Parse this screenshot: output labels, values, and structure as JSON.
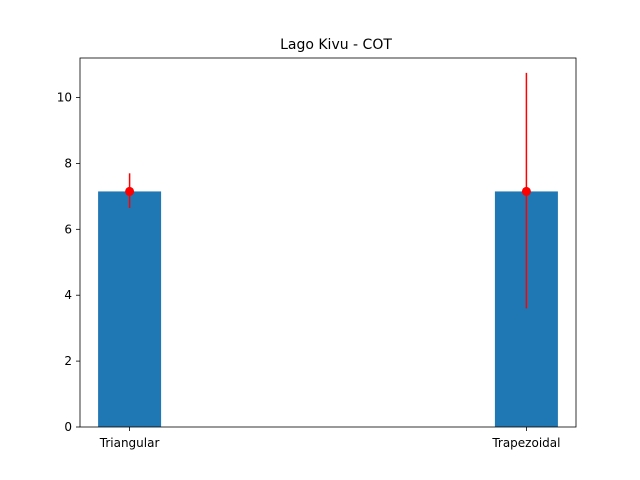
{
  "chart_data": {
    "type": "bar",
    "title": "Lago Kivu - COT",
    "xlabel": "",
    "ylabel": "",
    "categories": [
      "Triangular",
      "Trapezoidal"
    ],
    "values": [
      7.15,
      7.15
    ],
    "error_low": [
      6.65,
      3.6
    ],
    "error_high": [
      7.7,
      10.75
    ],
    "ylim": [
      0,
      11.2
    ],
    "yticks": [
      0,
      2,
      4,
      6,
      8,
      10
    ],
    "grid": false,
    "bar_color": "#1f77b4",
    "error_color": "#ff0000"
  }
}
